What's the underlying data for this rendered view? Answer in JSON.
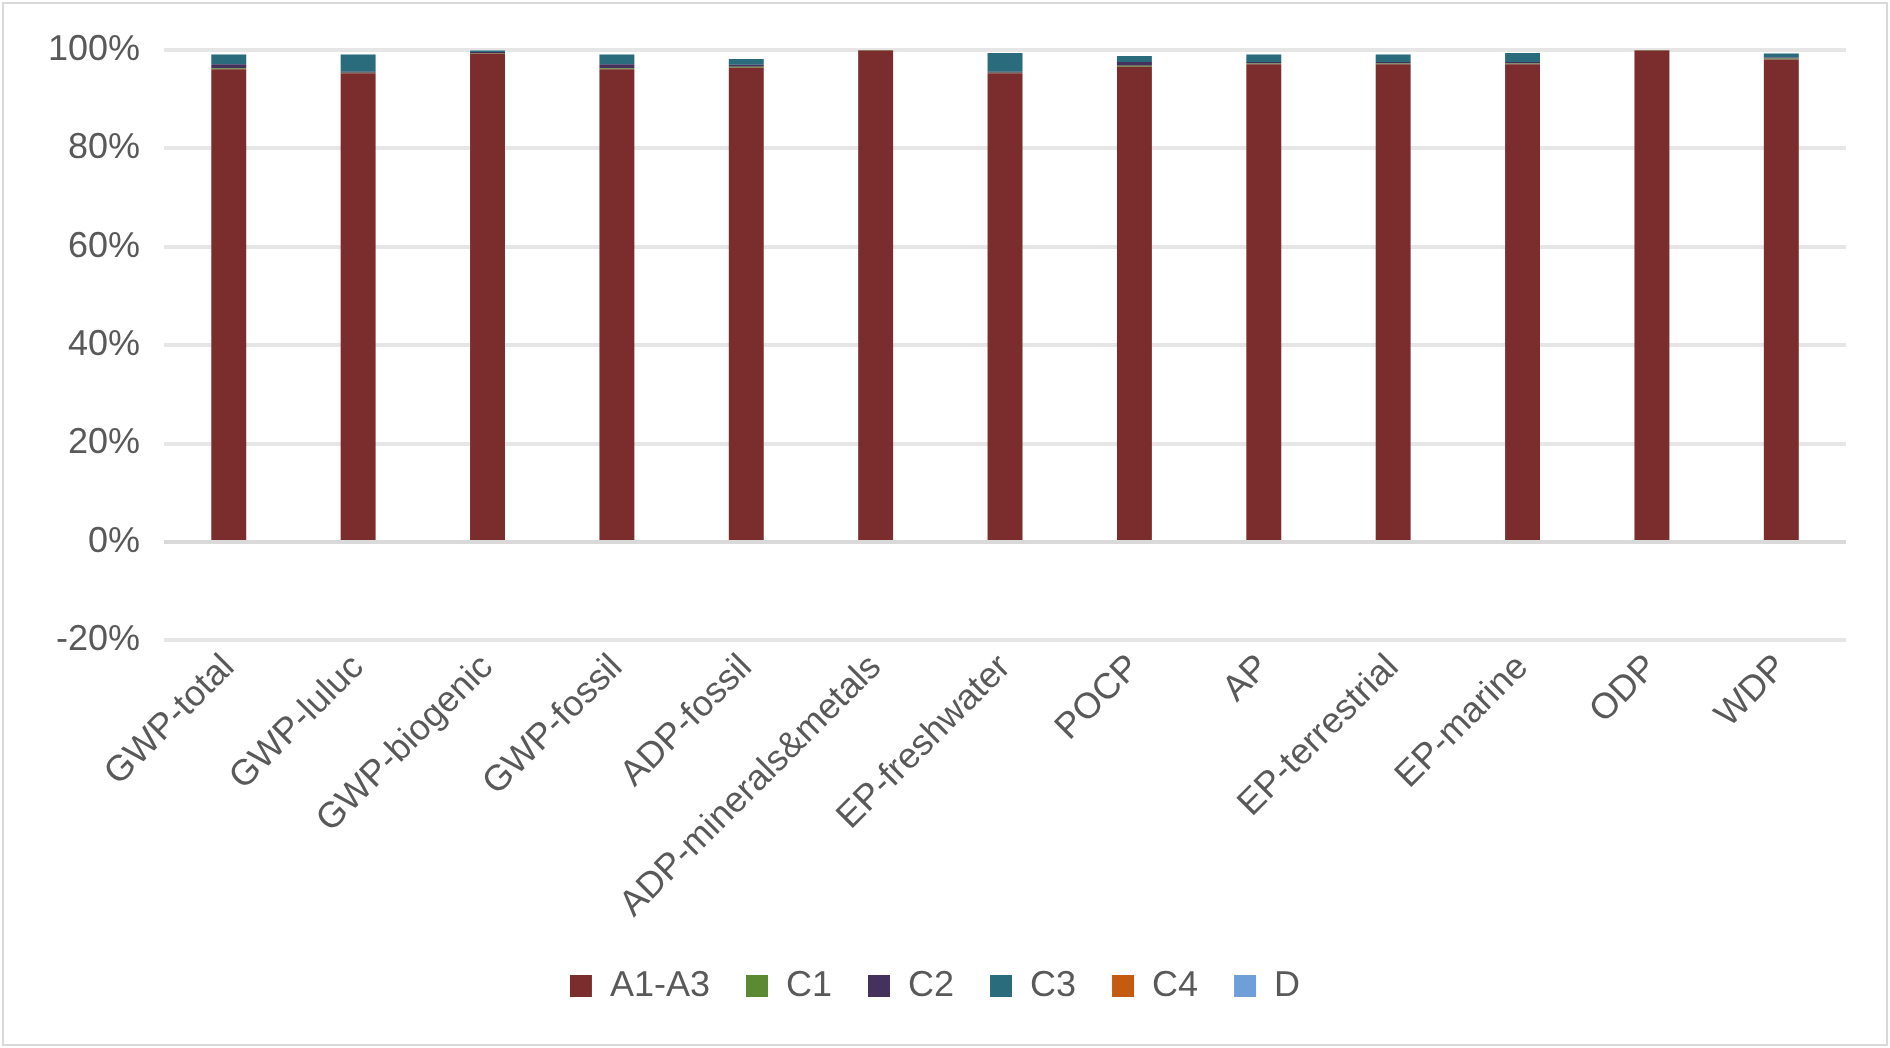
{
  "chart_data": {
    "type": "bar",
    "stacked": true,
    "categories": [
      "GWP-total",
      "GWP-luluc",
      "GWP-biogenic",
      "GWP-fossil",
      "ADP-fossil",
      "ADP-minerals&metals",
      "EP-freshwater",
      "POCP",
      "AP",
      "EP-terrestrial",
      "EP-marine",
      "ODP",
      "WDP"
    ],
    "series": [
      {
        "name": "A1-A3",
        "color": "#7b2c2c",
        "values": [
          96,
          95.2,
          99.2,
          96,
          96.3,
          99.8,
          95.2,
          96.5,
          97,
          97,
          97,
          99.8,
          98
        ]
      },
      {
        "name": "C1",
        "color": "#5b8a32",
        "values": [
          0.2,
          0.1,
          0.1,
          0.2,
          0.2,
          0.1,
          0.1,
          0.2,
          0.2,
          0.2,
          0.2,
          0.1,
          0.2
        ]
      },
      {
        "name": "C2",
        "color": "#44325c",
        "values": [
          0.8,
          0.2,
          0.2,
          0.8,
          0.4,
          0,
          0.2,
          0.8,
          0.3,
          0.3,
          0.3,
          0,
          0.2
        ]
      },
      {
        "name": "C3",
        "color": "#2a6b7c",
        "values": [
          2,
          3.5,
          0.3,
          2,
          1.2,
          0,
          3.8,
          1.2,
          1.5,
          1.5,
          1.8,
          0,
          0.8
        ]
      },
      {
        "name": "C4",
        "color": "#c55a11",
        "values": [
          0,
          0,
          0,
          0,
          0,
          0,
          0,
          0,
          0,
          0,
          0,
          0,
          0
        ]
      },
      {
        "name": "D",
        "color": "#6f9fd8",
        "values": [
          0,
          0,
          0,
          0,
          0,
          0,
          0,
          0,
          0,
          0,
          0,
          0,
          0
        ]
      }
    ],
    "ylim": [
      -20,
      100
    ],
    "yticks": [
      {
        "value": -20,
        "label": "-20%"
      },
      {
        "value": 0,
        "label": "0%"
      },
      {
        "value": 20,
        "label": "20%"
      },
      {
        "value": 40,
        "label": "40%"
      },
      {
        "value": 60,
        "label": "60%"
      },
      {
        "value": 80,
        "label": "80%"
      },
      {
        "value": 100,
        "label": "100%"
      }
    ],
    "grid": "y",
    "legend": "bottom"
  }
}
